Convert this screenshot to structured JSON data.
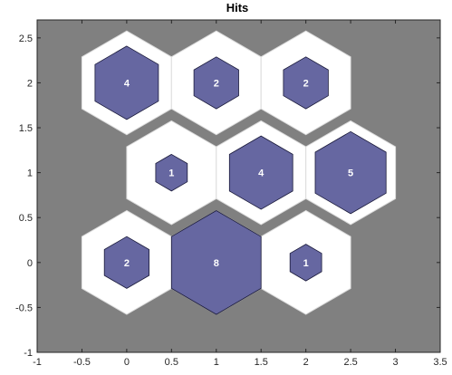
{
  "chart_data": {
    "type": "hexbin",
    "title": "Hits",
    "xlabel": "",
    "ylabel": "",
    "xlim": [
      -1,
      3.5
    ],
    "ylim": [
      -1,
      2.7
    ],
    "xticks": [
      -1,
      -0.5,
      0,
      0.5,
      1,
      1.5,
      2,
      2.5,
      3,
      3.5
    ],
    "xtick_labels": [
      "-1",
      "-0.5",
      "0",
      "0.5",
      "1",
      "1.5",
      "2",
      "2.5",
      "3",
      "3.5"
    ],
    "yticks": [
      -1,
      -0.5,
      0,
      0.5,
      1,
      1.5,
      2,
      2.5
    ],
    "ytick_labels": [
      "-1",
      "-0.5",
      "0",
      "0.5",
      "1",
      "1.5",
      "2",
      "2.5"
    ],
    "grid": false,
    "max_hits": 8,
    "neurons": [
      {
        "x": 0,
        "y": 0,
        "hits": 2
      },
      {
        "x": 1,
        "y": 0,
        "hits": 8
      },
      {
        "x": 2,
        "y": 0,
        "hits": 1
      },
      {
        "x": 0.5,
        "y": 1,
        "hits": 1
      },
      {
        "x": 1.5,
        "y": 1,
        "hits": 4
      },
      {
        "x": 2.5,
        "y": 1,
        "hits": 5
      },
      {
        "x": 0,
        "y": 2,
        "hits": 4
      },
      {
        "x": 1,
        "y": 2,
        "hits": 2
      },
      {
        "x": 2,
        "y": 2,
        "hits": 2
      }
    ],
    "colors": {
      "background": "#808080",
      "cell": "#ffffff",
      "cell_border": "#dcdcdc",
      "hit_fill": "#6667a1",
      "hit_border": "#1a1a3a",
      "label": "#ffffff"
    }
  }
}
